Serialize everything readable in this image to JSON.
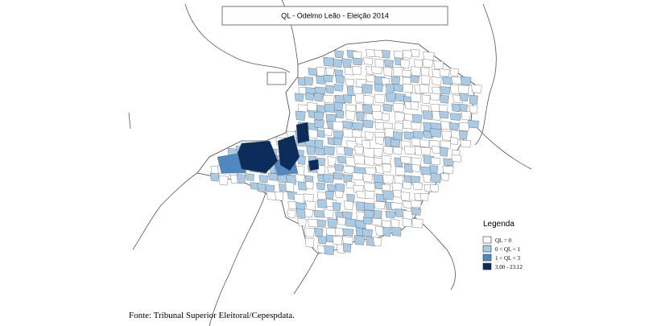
{
  "header": {
    "title": "QL - Odelmo Leão - Eleição 2014"
  },
  "legend": {
    "title": "Legenda",
    "items": [
      {
        "label": "QL = 0",
        "color": "#ffffff"
      },
      {
        "label": "0 < QL < 1",
        "color": "#a9cbe6"
      },
      {
        "label": "1 < QL < 3",
        "color": "#4f88c2"
      },
      {
        "label": "3.00 - 23.12",
        "color": "#0c2d5c"
      }
    ]
  },
  "footer": {
    "source": "Fonte: Tribunal Superior Eleitoral/Cepespdata."
  }
}
